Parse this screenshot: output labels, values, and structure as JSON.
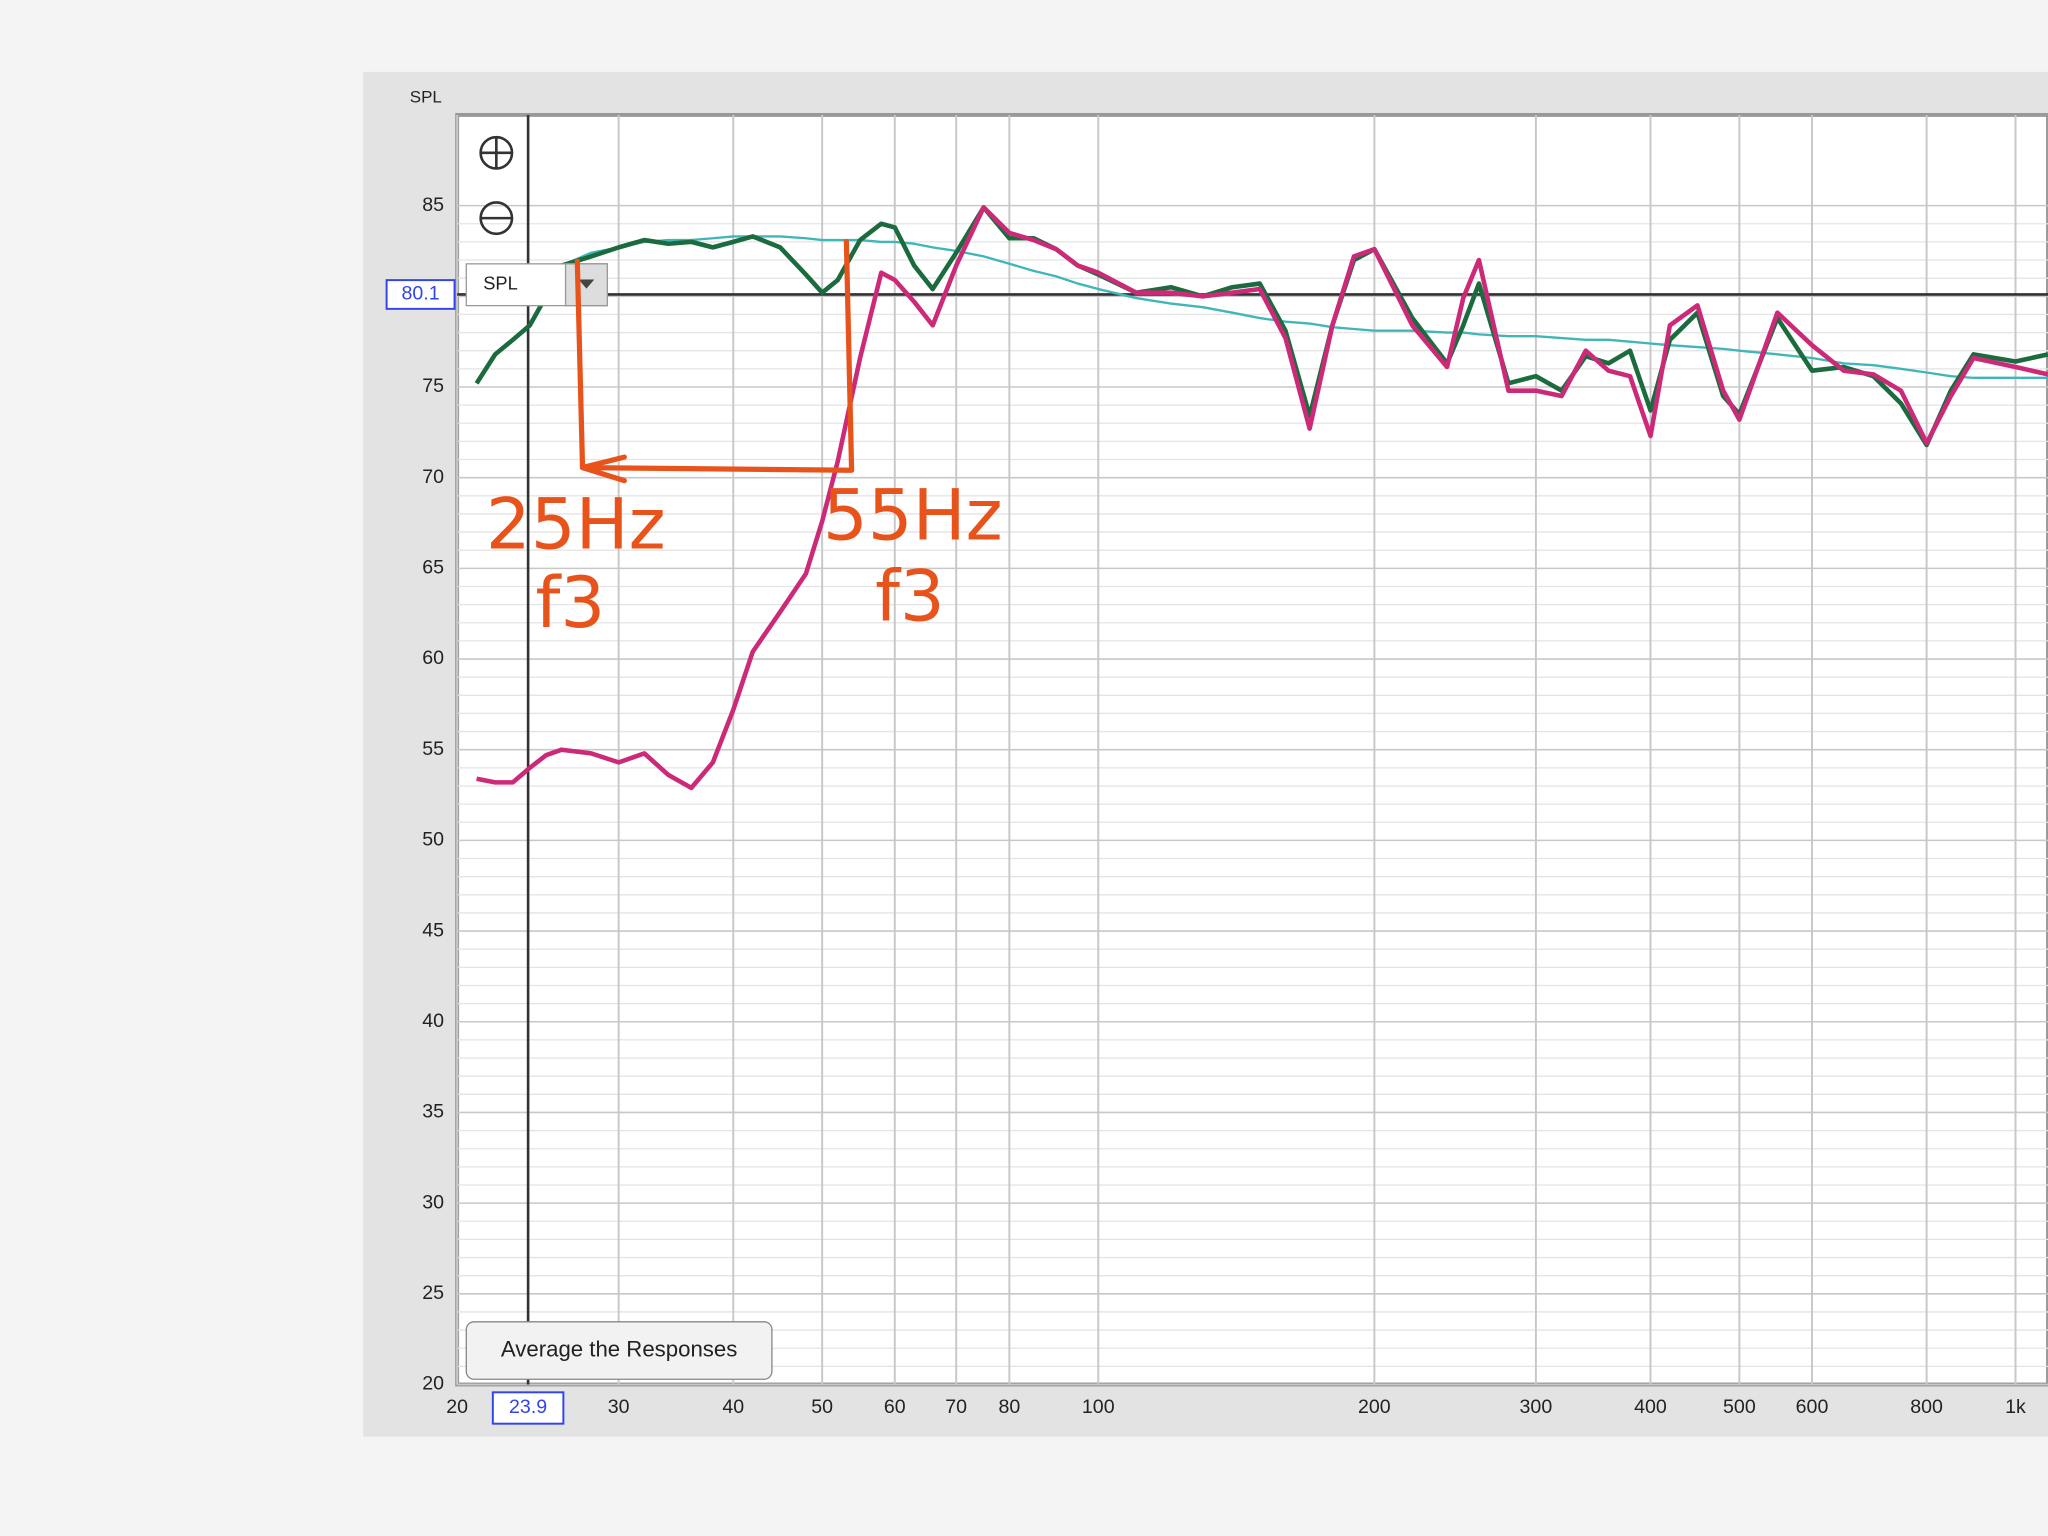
{
  "chart_data": {
    "type": "line",
    "y_label": "SPL",
    "x_scale": "log",
    "grid": true,
    "xlim": [
      20,
      1085
    ],
    "ylim": [
      20,
      90
    ],
    "xticks": [
      20,
      30,
      40,
      50,
      60,
      70,
      80,
      100,
      200,
      300,
      400,
      500,
      600,
      800,
      {
        "value": 1000,
        "label": "1k"
      }
    ],
    "yticks": [
      20,
      25,
      30,
      35,
      40,
      45,
      50,
      55,
      60,
      65,
      70,
      75,
      80,
      85
    ],
    "cursor": {
      "x": 23.9,
      "y": 80.1
    },
    "x": [
      20,
      21,
      22,
      23,
      24,
      25,
      26,
      28,
      30,
      32,
      34,
      36,
      38,
      40,
      42,
      45,
      48,
      50,
      52,
      55,
      58,
      60,
      63,
      66,
      70,
      75,
      80,
      85,
      90,
      95,
      100,
      110,
      120,
      130,
      140,
      150,
      160,
      170,
      180,
      190,
      200,
      220,
      240,
      250,
      260,
      280,
      300,
      320,
      340,
      360,
      380,
      400,
      420,
      450,
      480,
      500,
      550,
      600,
      650,
      700,
      750,
      800,
      850,
      900,
      1000,
      1085
    ],
    "series": [
      {
        "color": "#1c6b3e",
        "values": [
          null,
          75.2,
          76.8,
          77.6,
          78.4,
          80.0,
          81.7,
          82.2,
          82.7,
          83.1,
          82.9,
          83.0,
          82.7,
          83.0,
          83.3,
          82.7,
          81.2,
          80.2,
          80.9,
          83.1,
          84.0,
          83.8,
          81.7,
          80.4,
          82.4,
          84.9,
          83.2,
          83.2,
          82.6,
          81.7,
          81.2,
          80.2,
          80.5,
          80.0,
          80.5,
          80.7,
          78.1,
          73.4,
          78.4,
          82.0,
          82.6,
          78.8,
          76.3,
          78.4,
          80.7,
          75.2,
          75.6,
          74.8,
          76.7,
          76.3,
          77.0,
          73.7,
          77.6,
          79.1,
          74.5,
          73.5,
          78.8,
          75.9,
          76.1,
          75.6,
          74.1,
          71.8,
          74.8,
          76.8,
          76.4,
          76.8
        ]
      },
      {
        "color": "#cc2a78",
        "values": [
          null,
          53.4,
          53.2,
          53.2,
          54.0,
          54.7,
          55.0,
          54.8,
          54.3,
          54.8,
          53.6,
          52.9,
          54.3,
          57.2,
          60.4,
          62.6,
          64.7,
          67.6,
          70.9,
          76.6,
          81.3,
          80.9,
          79.7,
          78.4,
          81.7,
          84.9,
          83.5,
          83.1,
          82.6,
          81.7,
          81.3,
          80.2,
          80.2,
          80.0,
          80.2,
          80.4,
          77.7,
          72.7,
          78.4,
          82.2,
          82.6,
          78.4,
          76.1,
          79.9,
          82.0,
          74.8,
          74.8,
          74.5,
          77.0,
          75.9,
          75.6,
          72.3,
          78.4,
          79.5,
          74.8,
          73.2,
          79.1,
          77.3,
          75.9,
          75.7,
          74.8,
          71.9,
          74.5,
          76.6,
          76.1,
          75.7
        ]
      },
      {
        "color": "#3fb6b8",
        "values": [
          null,
          null,
          null,
          null,
          null,
          null,
          81.7,
          82.4,
          82.7,
          83.0,
          83.1,
          83.1,
          83.2,
          83.3,
          83.3,
          83.3,
          83.2,
          83.1,
          83.1,
          83.1,
          83.0,
          83.0,
          82.9,
          82.7,
          82.5,
          82.2,
          81.8,
          81.4,
          81.1,
          80.7,
          80.4,
          79.9,
          79.6,
          79.4,
          79.1,
          78.8,
          78.6,
          78.5,
          78.3,
          78.2,
          78.1,
          78.1,
          78.0,
          78.0,
          77.9,
          77.8,
          77.8,
          77.7,
          77.6,
          77.6,
          77.5,
          77.4,
          77.3,
          77.2,
          77.1,
          77.0,
          76.8,
          76.6,
          76.3,
          76.2,
          76.0,
          75.8,
          75.6,
          75.5,
          75.5,
          75.5
        ]
      }
    ]
  },
  "ui": {
    "dropdown": "SPL",
    "button": "Average the Responses"
  },
  "annotations": {
    "left_freq": "25Hz",
    "left_note": "f3",
    "right_freq": "55Hz",
    "right_note": "f3"
  }
}
